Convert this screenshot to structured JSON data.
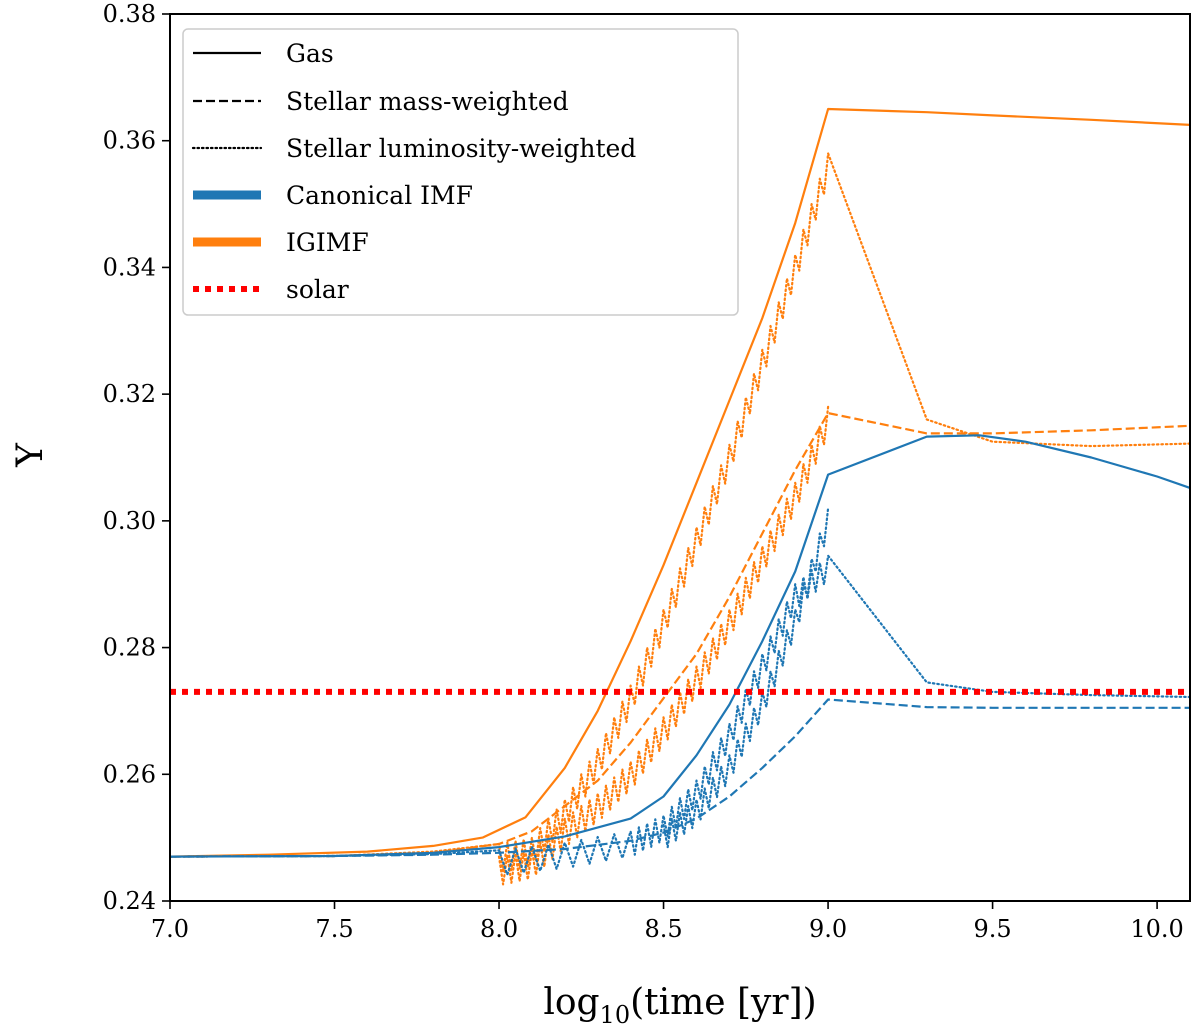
{
  "chart_data": {
    "type": "line",
    "title": "",
    "xlabel": "log10(time [yr])",
    "xlabel_parts": {
      "prefix": "log",
      "sub": "10",
      "suffix": "(time [yr])"
    },
    "ylabel": "Y",
    "xlim": [
      7.0,
      10.1
    ],
    "ylim": [
      0.24,
      0.38
    ],
    "xticks": [
      7.0,
      7.5,
      8.0,
      8.5,
      9.0,
      9.5,
      10.0
    ],
    "xtick_labels": [
      "7.0",
      "7.5",
      "8.0",
      "8.5",
      "9.0",
      "9.5",
      "10.0"
    ],
    "yticks": [
      0.24,
      0.26,
      0.28,
      0.3,
      0.32,
      0.34,
      0.36,
      0.38
    ],
    "ytick_labels": [
      "0.24",
      "0.26",
      "0.28",
      "0.30",
      "0.32",
      "0.34",
      "0.36",
      "0.38"
    ],
    "grid": false,
    "legend_position": "upper-left",
    "legend": [
      {
        "label": "Gas",
        "kind": "line",
        "dash": "solid",
        "color": "#000000"
      },
      {
        "label": "Stellar mass-weighted",
        "kind": "line",
        "dash": "dashed",
        "color": "#000000"
      },
      {
        "label": "Stellar luminosity-weighted",
        "kind": "line",
        "dash": "dotted",
        "color": "#000000"
      },
      {
        "label": "Canonical IMF",
        "kind": "patch",
        "color": "#1f77b4"
      },
      {
        "label": "IGIMF",
        "kind": "patch",
        "color": "#ff7f0e"
      },
      {
        "label": "solar",
        "kind": "thickdot",
        "color": "#ff0000"
      }
    ],
    "colors": {
      "canonical": "#1f77b4",
      "igimf": "#ff7f0e",
      "solar": "#ff0000"
    },
    "series": [
      {
        "id": "igimf-gas",
        "group": "igimf",
        "style": "solid",
        "points": [
          [
            7.0,
            0.247
          ],
          [
            7.3,
            0.2473
          ],
          [
            7.6,
            0.2478
          ],
          [
            7.8,
            0.2487
          ],
          [
            7.95,
            0.25
          ],
          [
            8.08,
            0.2532
          ],
          [
            8.2,
            0.261
          ],
          [
            8.3,
            0.27
          ],
          [
            8.4,
            0.281
          ],
          [
            8.5,
            0.293
          ],
          [
            8.6,
            0.306
          ],
          [
            8.7,
            0.319
          ],
          [
            8.8,
            0.332
          ],
          [
            8.9,
            0.347
          ],
          [
            9.0,
            0.365
          ],
          [
            9.3,
            0.3645
          ],
          [
            9.5,
            0.364
          ],
          [
            9.8,
            0.3633
          ],
          [
            10.1,
            0.3625
          ]
        ]
      },
      {
        "id": "igimf-mass",
        "group": "igimf",
        "style": "dashed",
        "points": [
          [
            7.0,
            0.247
          ],
          [
            7.5,
            0.2471
          ],
          [
            7.8,
            0.2476
          ],
          [
            8.0,
            0.249
          ],
          [
            8.1,
            0.251
          ],
          [
            8.2,
            0.255
          ],
          [
            8.3,
            0.259
          ],
          [
            8.4,
            0.265
          ],
          [
            8.5,
            0.272
          ],
          [
            8.6,
            0.279
          ],
          [
            8.7,
            0.288
          ],
          [
            8.8,
            0.298
          ],
          [
            8.9,
            0.308
          ],
          [
            9.0,
            0.317
          ],
          [
            9.3,
            0.3138
          ],
          [
            9.5,
            0.3138
          ],
          [
            9.8,
            0.3143
          ],
          [
            10.1,
            0.315
          ]
        ]
      },
      {
        "id": "igimf-lum",
        "group": "igimf",
        "style": "dotted",
        "sawtooth": 0.0045,
        "sawtooth_end": 9.0,
        "points": [
          [
            7.0,
            0.247
          ],
          [
            7.5,
            0.2471
          ],
          [
            7.8,
            0.2478
          ],
          [
            8.0,
            0.249
          ],
          [
            8.1,
            0.25
          ],
          [
            8.2,
            0.256
          ],
          [
            8.3,
            0.264
          ],
          [
            8.4,
            0.274
          ],
          [
            8.5,
            0.286
          ],
          [
            8.6,
            0.299
          ],
          [
            8.7,
            0.312
          ],
          [
            8.8,
            0.327
          ],
          [
            8.9,
            0.342
          ],
          [
            9.0,
            0.358
          ],
          [
            9.3,
            0.316
          ],
          [
            9.5,
            0.3125
          ],
          [
            9.8,
            0.3118
          ],
          [
            10.1,
            0.3122
          ]
        ]
      },
      {
        "id": "igimf-lum-2",
        "group": "igimf",
        "style": "dotted",
        "sawtooth": 0.0045,
        "sawtooth_end": 9.0,
        "points": [
          [
            8.0,
            0.247
          ],
          [
            8.1,
            0.248
          ],
          [
            8.2,
            0.253
          ],
          [
            8.3,
            0.257
          ],
          [
            8.4,
            0.262
          ],
          [
            8.5,
            0.269
          ],
          [
            8.6,
            0.277
          ],
          [
            8.7,
            0.286
          ],
          [
            8.8,
            0.296
          ],
          [
            8.9,
            0.306
          ],
          [
            9.0,
            0.318
          ]
        ]
      },
      {
        "id": "can-gas",
        "group": "canonical",
        "style": "solid",
        "points": [
          [
            7.0,
            0.247
          ],
          [
            7.5,
            0.2471
          ],
          [
            7.8,
            0.2476
          ],
          [
            8.0,
            0.2485
          ],
          [
            8.2,
            0.2502
          ],
          [
            8.4,
            0.253
          ],
          [
            8.5,
            0.2565
          ],
          [
            8.6,
            0.263
          ],
          [
            8.7,
            0.271
          ],
          [
            8.8,
            0.281
          ],
          [
            8.9,
            0.292
          ],
          [
            9.0,
            0.3073
          ],
          [
            9.3,
            0.3133
          ],
          [
            9.46,
            0.3135
          ],
          [
            9.6,
            0.3125
          ],
          [
            9.8,
            0.31
          ],
          [
            10.0,
            0.307
          ],
          [
            10.1,
            0.3052
          ]
        ]
      },
      {
        "id": "can-mass",
        "group": "canonical",
        "style": "dashed",
        "points": [
          [
            7.0,
            0.247
          ],
          [
            7.5,
            0.2471
          ],
          [
            7.8,
            0.2473
          ],
          [
            8.0,
            0.2476
          ],
          [
            8.2,
            0.2482
          ],
          [
            8.4,
            0.2495
          ],
          [
            8.5,
            0.2508
          ],
          [
            8.6,
            0.253
          ],
          [
            8.7,
            0.2565
          ],
          [
            8.8,
            0.261
          ],
          [
            8.9,
            0.266
          ],
          [
            9.0,
            0.2718
          ],
          [
            9.3,
            0.2706
          ],
          [
            9.5,
            0.2705
          ],
          [
            9.8,
            0.2705
          ],
          [
            10.1,
            0.2705
          ]
        ]
      },
      {
        "id": "can-lum",
        "group": "canonical",
        "style": "dotted",
        "sawtooth": 0.004,
        "sawtooth_end": 9.0,
        "points": [
          [
            7.0,
            0.247
          ],
          [
            7.5,
            0.2471
          ],
          [
            7.8,
            0.2474
          ],
          [
            8.0,
            0.248
          ],
          [
            8.2,
            0.2492
          ],
          [
            8.4,
            0.251
          ],
          [
            8.5,
            0.2535
          ],
          [
            8.6,
            0.259
          ],
          [
            8.7,
            0.268
          ],
          [
            8.8,
            0.279
          ],
          [
            8.9,
            0.29
          ],
          [
            9.0,
            0.2945
          ],
          [
            9.3,
            0.2745
          ],
          [
            9.5,
            0.273
          ],
          [
            9.8,
            0.2725
          ],
          [
            10.1,
            0.2722
          ]
        ]
      },
      {
        "id": "can-lum-2",
        "group": "canonical",
        "style": "dotted",
        "sawtooth": 0.004,
        "sawtooth_end": 9.0,
        "points": [
          [
            8.5,
            0.252
          ],
          [
            8.6,
            0.256
          ],
          [
            8.7,
            0.263
          ],
          [
            8.8,
            0.273
          ],
          [
            8.9,
            0.286
          ],
          [
            9.0,
            0.302
          ]
        ]
      },
      {
        "id": "solar",
        "group": "solar",
        "style": "thickdot",
        "points": [
          [
            7.0,
            0.273
          ],
          [
            10.1,
            0.273
          ]
        ]
      }
    ]
  }
}
